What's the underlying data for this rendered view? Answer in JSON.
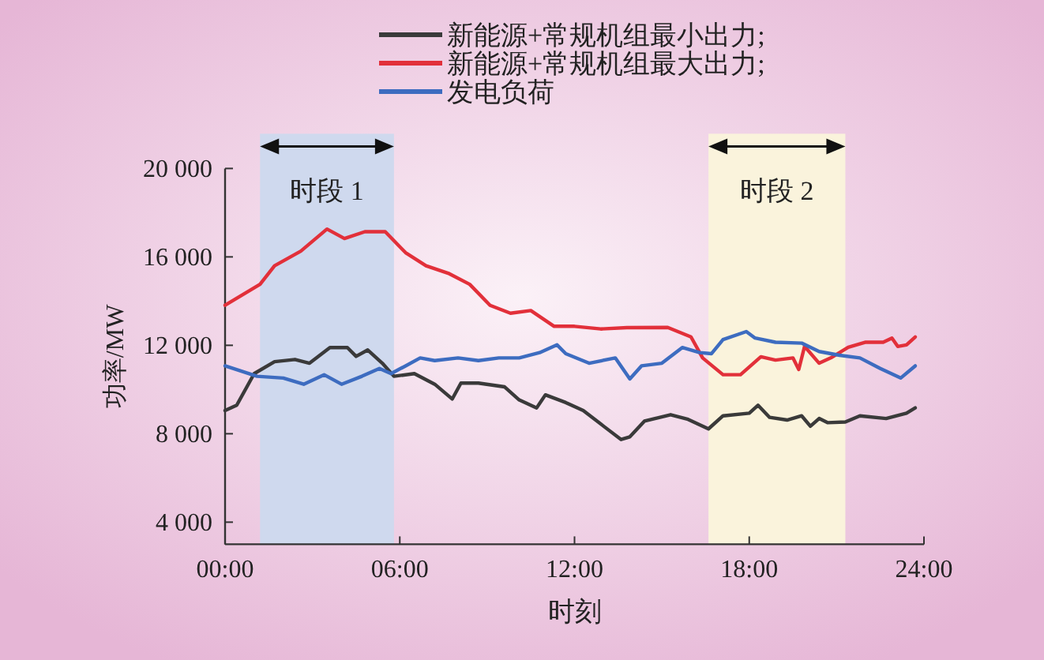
{
  "chart_data": {
    "type": "line",
    "xlabel": "时刻",
    "ylabel": "功率/MW",
    "xlim": [
      0,
      24
    ],
    "ylim": [
      3000,
      20000
    ],
    "xticks": [
      {
        "value": 0,
        "label": "00:00"
      },
      {
        "value": 6,
        "label": "06:00"
      },
      {
        "value": 12,
        "label": "12:00"
      },
      {
        "value": 18,
        "label": "18:00"
      },
      {
        "value": 24,
        "label": "24:00"
      }
    ],
    "yticks": [
      {
        "value": 4000,
        "label": "4 000"
      },
      {
        "value": 8000,
        "label": "8 000"
      },
      {
        "value": 12000,
        "label": "12 000"
      },
      {
        "value": 16000,
        "label": "16 000"
      },
      {
        "value": 20000,
        "label": "20 000"
      }
    ],
    "grid": false,
    "legend": "top",
    "marker": "none",
    "line_style": "solid",
    "bands": [
      {
        "axis": "x",
        "from": 1.2,
        "to": 5.8,
        "label": "时段 1",
        "color": "#cfd9ee"
      },
      {
        "axis": "x",
        "from": 16.6,
        "to": 21.3,
        "label": "时段 2",
        "color": "#faf3dc"
      }
    ],
    "series": [
      {
        "name": "新能源+常规机组最小出力;",
        "color": "#3a3a3a",
        "x": [
          0,
          0.4,
          1.0,
          1.7,
          2.4,
          2.9,
          3.6,
          4.2,
          4.5,
          4.9,
          5.4,
          5.8,
          6.5,
          7.2,
          7.8,
          8.1,
          8.7,
          9.6,
          10.1,
          10.7,
          11.0,
          11.7,
          12.3,
          13.0,
          13.6,
          13.9,
          14.4,
          15.3,
          15.9,
          16.6,
          17.1,
          18.0,
          18.3,
          18.7,
          19.3,
          19.8,
          20.1,
          20.4,
          20.7,
          21.3,
          21.8,
          22.7,
          23.4,
          23.7
        ],
        "values": [
          9050,
          9290,
          10720,
          11260,
          11360,
          11190,
          11900,
          11900,
          11500,
          11790,
          11190,
          10600,
          10720,
          10240,
          9570,
          10290,
          10290,
          10120,
          9530,
          9170,
          9760,
          9410,
          9050,
          8340,
          7740,
          7860,
          8570,
          8860,
          8650,
          8220,
          8810,
          8930,
          9290,
          8740,
          8620,
          8810,
          8340,
          8690,
          8500,
          8530,
          8810,
          8690,
          8930,
          9170
        ]
      },
      {
        "name": "新能源+常规机组最大出力;",
        "color": "#e2303a",
        "x": [
          0,
          1.2,
          1.7,
          2.6,
          3.5,
          4.1,
          4.8,
          5.5,
          6.2,
          6.9,
          7.7,
          8.4,
          9.1,
          9.8,
          10.5,
          11.3,
          12.0,
          12.9,
          13.8,
          15.2,
          16.0,
          16.4,
          17.1,
          17.7,
          18.4,
          18.9,
          19.5,
          19.7,
          19.9,
          20.4,
          20.8,
          21.4,
          22.0,
          22.6,
          22.9,
          23.1,
          23.4,
          23.7
        ],
        "values": [
          13810,
          14760,
          15600,
          16260,
          17260,
          16830,
          17140,
          17140,
          16190,
          15600,
          15240,
          14760,
          13810,
          13450,
          13570,
          12860,
          12860,
          12740,
          12800,
          12810,
          12380,
          11430,
          10670,
          10670,
          11480,
          11330,
          11430,
          10910,
          11950,
          11190,
          11430,
          11910,
          12140,
          12140,
          12330,
          11950,
          12020,
          12380
        ]
      },
      {
        "name": "发电负荷",
        "color": "#3d6cc0",
        "x": [
          0,
          1.1,
          2.0,
          2.7,
          3.4,
          4.0,
          4.7,
          5.3,
          5.7,
          6.2,
          6.7,
          7.2,
          8.0,
          8.7,
          9.4,
          10.1,
          10.8,
          11.4,
          11.7,
          12.5,
          13.4,
          13.9,
          14.3,
          15.0,
          15.7,
          16.3,
          16.7,
          17.1,
          17.9,
          18.2,
          18.9,
          19.8,
          20.4,
          21.1,
          21.8,
          22.5,
          23.2,
          23.7
        ],
        "values": [
          11070,
          10600,
          10520,
          10240,
          10670,
          10240,
          10600,
          10950,
          10720,
          11070,
          11430,
          11310,
          11430,
          11310,
          11430,
          11430,
          11670,
          12020,
          11620,
          11190,
          11430,
          10480,
          11070,
          11190,
          11900,
          11670,
          11620,
          12260,
          12620,
          12330,
          12140,
          12100,
          11720,
          11550,
          11430,
          10950,
          10520,
          11070
        ]
      }
    ]
  }
}
